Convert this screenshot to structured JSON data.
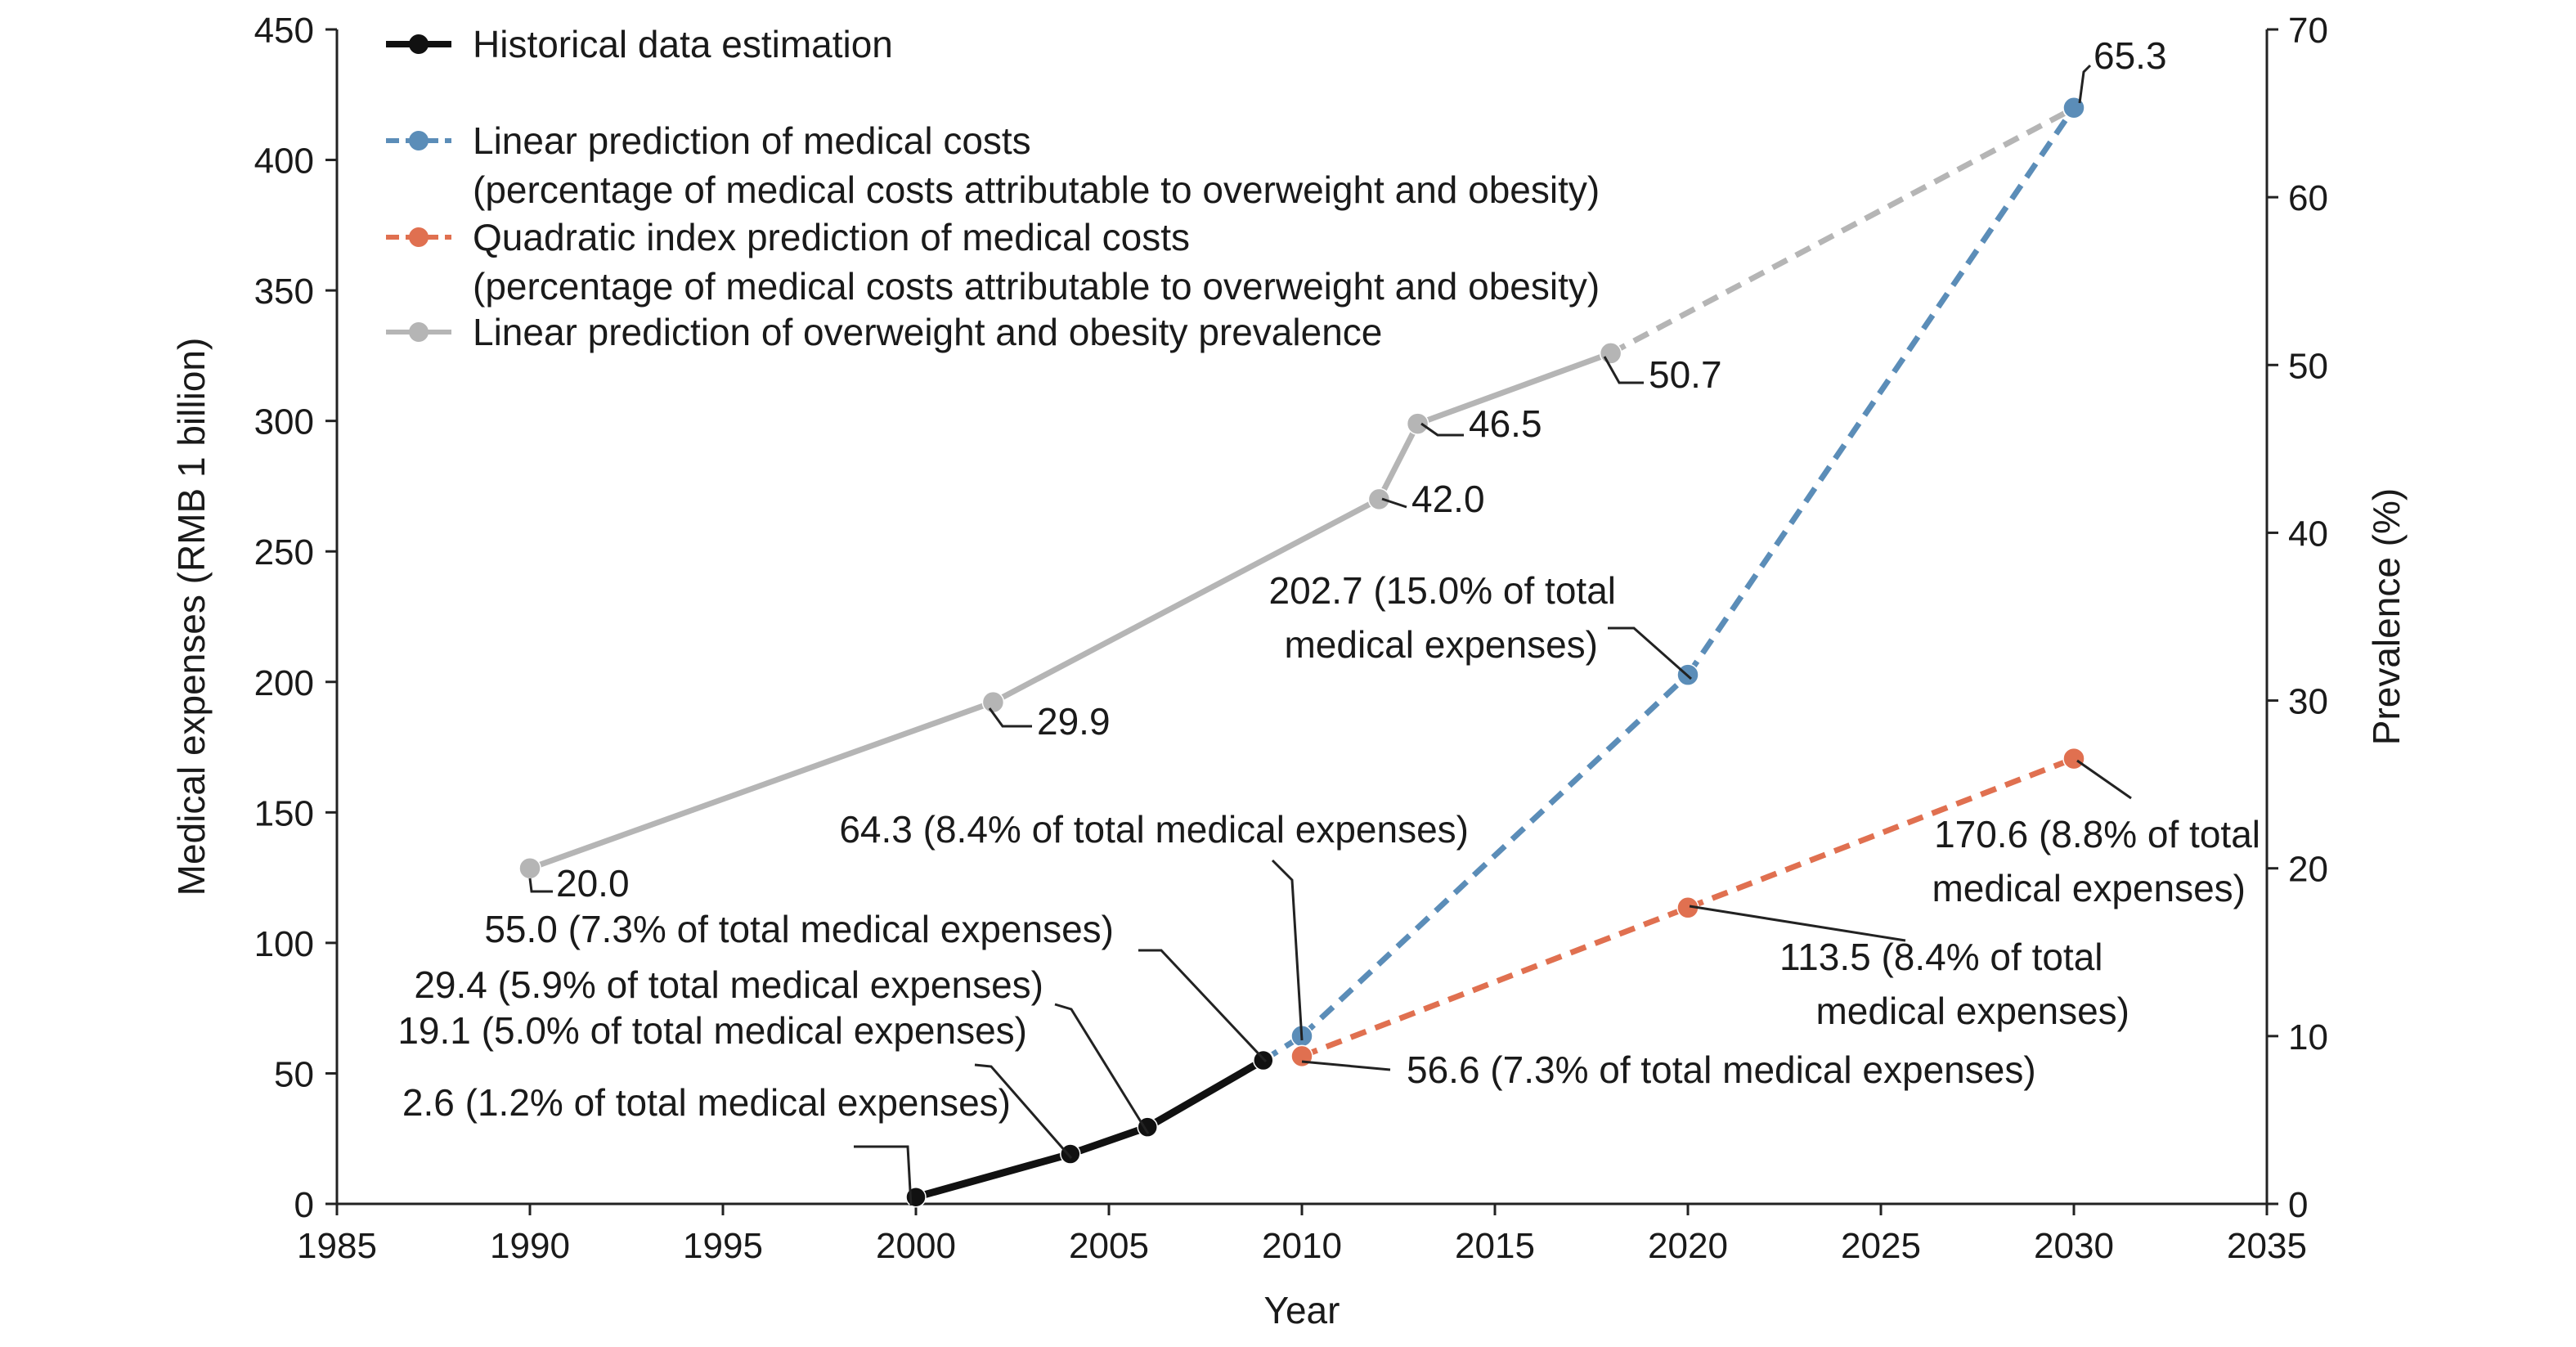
{
  "chart_data": {
    "type": "line",
    "xlabel": "Year",
    "ylabel_left": "Medical expenses (RMB 1 billion)",
    "ylabel_right": "Prevalence (%)",
    "xlim": [
      1985,
      2035
    ],
    "ylim_left": [
      0,
      450
    ],
    "ylim_right": [
      0,
      70
    ],
    "x_ticks": [
      1985,
      1990,
      1995,
      2000,
      2005,
      2010,
      2015,
      2020,
      2025,
      2030,
      2035
    ],
    "y_left_ticks": [
      0,
      50,
      100,
      150,
      200,
      250,
      300,
      350,
      400,
      450
    ],
    "y_right_ticks": [
      0,
      10,
      20,
      30,
      40,
      50,
      60,
      70
    ],
    "grid": false,
    "legend_position": "top-left",
    "series": [
      {
        "id": "historical",
        "name": "Historical data estimation",
        "axis": "left",
        "color": "#111111",
        "style": "solid",
        "points": [
          {
            "x": 2000,
            "y": 2.6
          },
          {
            "x": 2004,
            "y": 19.1
          },
          {
            "x": 2006,
            "y": 29.4
          },
          {
            "x": 2009,
            "y": 55.0
          }
        ]
      },
      {
        "id": "linear_costs",
        "name": "Linear prediction of medical costs",
        "name_line2": "(percentage of medical costs attributable to overweight and obesity)",
        "axis": "left",
        "color": "#5b8db8",
        "style": "dashed",
        "points": [
          {
            "x": 2009,
            "y": 55.0
          },
          {
            "x": 2010,
            "y": 64.3
          },
          {
            "x": 2020,
            "y": 202.7
          },
          {
            "x": 2030,
            "y": 420.0
          }
        ]
      },
      {
        "id": "quadratic_costs",
        "name": "Quadratic index prediction of medical costs",
        "name_line2": "(percentage of medical costs attributable to overweight and obesity)",
        "axis": "left",
        "color": "#e07050",
        "style": "dashed",
        "points": [
          {
            "x": 2010,
            "y": 56.6
          },
          {
            "x": 2020,
            "y": 113.5
          },
          {
            "x": 2030,
            "y": 170.6
          }
        ]
      },
      {
        "id": "prevalence",
        "name": "Linear prediction of overweight and obesity prevalence",
        "axis": "right",
        "color": "#b5b5b5",
        "style": "solid-then-dashed",
        "dash_after_x": 2018,
        "points": [
          {
            "x": 1990,
            "y": 20.0
          },
          {
            "x": 2002,
            "y": 29.9
          },
          {
            "x": 2012,
            "y": 42.0
          },
          {
            "x": 2013,
            "y": 46.5
          },
          {
            "x": 2018,
            "y": 50.7
          },
          {
            "x": 2030,
            "y": 65.3
          }
        ]
      }
    ],
    "annotations": [
      {
        "id": "prev-1990",
        "series": "prevalence",
        "x": 1990,
        "lines": [
          "20.0"
        ]
      },
      {
        "id": "prev-2002",
        "series": "prevalence",
        "x": 2002,
        "lines": [
          "29.9"
        ]
      },
      {
        "id": "prev-2012",
        "series": "prevalence",
        "x": 2012,
        "lines": [
          "42.0"
        ]
      },
      {
        "id": "prev-2013",
        "series": "prevalence",
        "x": 2013,
        "lines": [
          "46.5"
        ]
      },
      {
        "id": "prev-2018",
        "series": "prevalence",
        "x": 2018,
        "lines": [
          "50.7"
        ]
      },
      {
        "id": "prev-2030",
        "series": "prevalence",
        "x": 2030,
        "lines": [
          "65.3"
        ]
      },
      {
        "id": "hist-2000",
        "series": "historical",
        "x": 2000,
        "lines": [
          "2.6 (1.2% of total medical expenses)"
        ]
      },
      {
        "id": "hist-2004",
        "series": "historical",
        "x": 2004,
        "lines": [
          "19.1 (5.0% of total medical expenses)"
        ]
      },
      {
        "id": "hist-2006",
        "series": "historical",
        "x": 2006,
        "lines": [
          "29.4 (5.9% of total medical expenses)"
        ]
      },
      {
        "id": "hist-2009",
        "series": "historical",
        "x": 2009,
        "lines": [
          "55.0 (7.3% of total medical expenses)"
        ]
      },
      {
        "id": "lin-2010",
        "series": "linear_costs",
        "x": 2010,
        "lines": [
          "64.3 (8.4% of total medical expenses)"
        ]
      },
      {
        "id": "lin-2020",
        "series": "linear_costs",
        "x": 2020,
        "lines": [
          "202.7 (15.0% of total",
          "medical expenses)"
        ]
      },
      {
        "id": "quad-2010",
        "series": "quadratic_costs",
        "x": 2010,
        "lines": [
          "56.6 (7.3% of total medical expenses)"
        ]
      },
      {
        "id": "quad-2020",
        "series": "quadratic_costs",
        "x": 2020,
        "lines": [
          "113.5 (8.4% of total",
          "medical expenses)"
        ]
      },
      {
        "id": "quad-2030",
        "series": "quadratic_costs",
        "x": 2030,
        "lines": [
          "170.6 (8.8% of total",
          "medical expenses)"
        ]
      }
    ]
  }
}
